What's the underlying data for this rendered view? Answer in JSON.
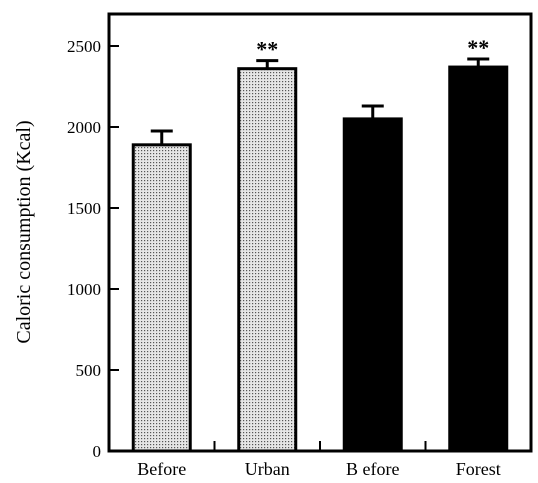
{
  "chart_data": {
    "type": "bar",
    "title": "",
    "xlabel": "",
    "ylabel": "Caloric consumption (Kcal)",
    "ylim": [
      0,
      2500
    ],
    "yticks": [
      0,
      500,
      1000,
      1500,
      2000,
      2500
    ],
    "categories": [
      "Before",
      "Urban",
      "B efore",
      "Forest"
    ],
    "values": [
      1890,
      2360,
      2050,
      2370
    ],
    "errors": [
      85,
      50,
      80,
      50
    ],
    "bar_fill": [
      "dotted",
      "dotted",
      "solid",
      "solid"
    ],
    "annotations": [
      "",
      "**",
      "",
      "**"
    ],
    "grid": false,
    "legend": "none",
    "colors": {
      "dotted_bar": "#d9d9d9",
      "solid_bar": "#000000",
      "axis": "#000000"
    }
  }
}
